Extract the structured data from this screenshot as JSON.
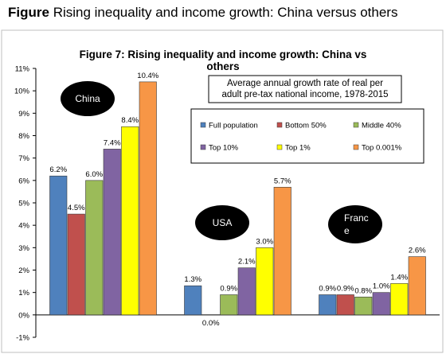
{
  "caption": {
    "prefix": "Figure",
    "text": "Rising inequality and income growth: China versus others"
  },
  "chart_data": {
    "type": "bar",
    "title_line1": "Figure 7: Rising inequality and income growth: China vs",
    "title_line2": "others",
    "subtitle_line1": "Average annual growth rate of real per",
    "subtitle_line2": "adult pre-tax national income, 1978-2015",
    "groups": [
      "China",
      "USA",
      "France"
    ],
    "group_labels": [
      [
        "China"
      ],
      [
        "USA"
      ],
      [
        "Franc",
        "e"
      ]
    ],
    "ylim": [
      -1,
      11
    ],
    "yticks": [
      -1,
      0,
      1,
      2,
      3,
      4,
      5,
      6,
      7,
      8,
      9,
      10,
      11
    ],
    "ytick_labels": [
      "-1%",
      "0%",
      "1%",
      "2%",
      "3%",
      "4%",
      "5%",
      "6%",
      "7%",
      "8%",
      "9%",
      "10%",
      "11%"
    ],
    "series": [
      {
        "name": "Full population",
        "color": "#4f81bd",
        "values": [
          6.2,
          1.3,
          0.9
        ],
        "labels": [
          "6.2%",
          "1.3%",
          "0.9%"
        ]
      },
      {
        "name": "Bottom 50%",
        "color": "#c0504d",
        "values": [
          4.5,
          0.0,
          0.9
        ],
        "labels": [
          "4.5%",
          "0.0%",
          "0.9%"
        ]
      },
      {
        "name": "Middle 40%",
        "color": "#9bbb59",
        "values": [
          6.0,
          0.9,
          0.8
        ],
        "labels": [
          "6.0%",
          "0.9%",
          "0.8%"
        ]
      },
      {
        "name": "Top 10%",
        "color": "#8064a2",
        "values": [
          7.4,
          2.1,
          1.0
        ],
        "labels": [
          "7.4%",
          "2.1%",
          "1.0%"
        ]
      },
      {
        "name": "Top 1%",
        "color": "#ffff00",
        "values": [
          8.4,
          3.0,
          1.4
        ],
        "labels": [
          "8.4%",
          "3.0%",
          "1.4%"
        ]
      },
      {
        "name": "Top 0.001%",
        "color": "#f79646",
        "values": [
          10.4,
          5.7,
          2.6
        ],
        "labels": [
          "10.4%",
          "5.7%",
          "2.6%"
        ]
      }
    ],
    "grid": false,
    "legend_position": "upper-right"
  }
}
